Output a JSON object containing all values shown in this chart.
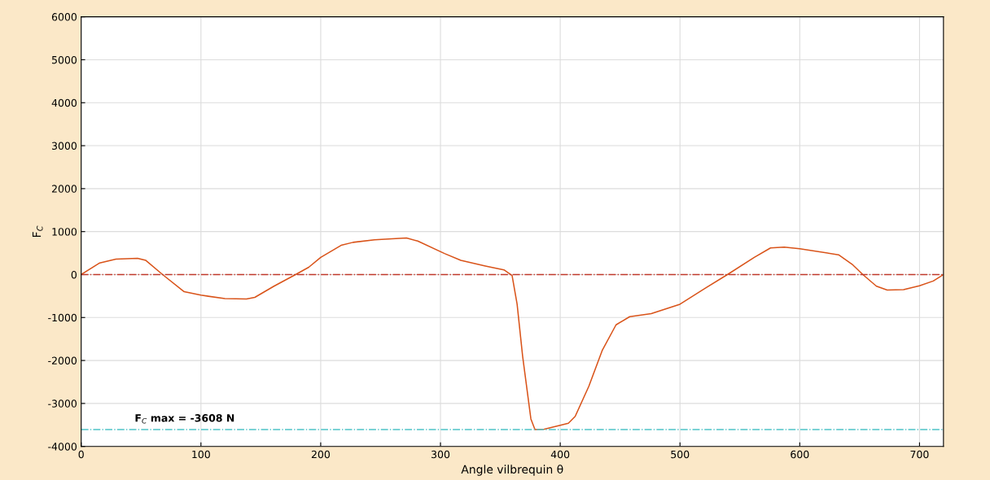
{
  "chart_data": {
    "type": "line",
    "xlabel": "Angle vilbrequin θ",
    "ylabel": "F$_{C}$",
    "xlim": [
      0,
      720
    ],
    "xticks": [
      0,
      100,
      200,
      300,
      400,
      500,
      600,
      700
    ],
    "ylim": [
      -4000,
      6000
    ],
    "yticks": [
      -4000,
      -3000,
      -2000,
      -1000,
      0,
      1000,
      2000,
      3000,
      4000,
      5000,
      6000
    ],
    "grid": true,
    "line_style": "solid",
    "marker": "none",
    "series": [
      {
        "color": "#d95319",
        "x": [
          0,
          15.5,
          29,
          47,
          54,
          68,
          86,
          100,
          120,
          138,
          145,
          161,
          179,
          190,
          200,
          217,
          227,
          245,
          271.6,
          281,
          303.4,
          317,
          337.5,
          353,
          359.8,
          364,
          368.6,
          375.5,
          378.9,
          386.8,
          400,
          406.8,
          412.5,
          423.9,
          435,
          446.6,
          458,
          476,
          500,
          521.5,
          539.6,
          562,
          575.6,
          587,
          600,
          632.4,
          643.7,
          652.7,
          664,
          673,
          686.7,
          700,
          711.5,
          720
        ],
        "values": [
          0,
          270,
          360,
          380,
          330,
          0,
          -400,
          -480,
          -560,
          -570,
          -530,
          -270,
          0,
          170,
          400,
          680,
          750,
          810,
          850,
          780,
          490,
          330,
          200,
          110,
          -20,
          -690,
          -1900,
          -3360,
          -3608,
          -3600,
          -3510,
          -3460,
          -3300,
          -2600,
          -1770,
          -1170,
          -980,
          -910,
          -690,
          -310,
          0,
          400,
          620,
          640,
          600,
          460,
          240,
          0,
          -270,
          -360,
          -350,
          -260,
          -150,
          0
        ]
      }
    ],
    "ref_lines": [
      {
        "axis": "y",
        "value": 0,
        "color": "#c0392b",
        "line_style": "dashdot"
      },
      {
        "axis": "y",
        "value": -3608,
        "color": "#4fc3c8",
        "line_style": "dashdot",
        "label": "F$_{C}$ max = -3608 N"
      }
    ]
  }
}
